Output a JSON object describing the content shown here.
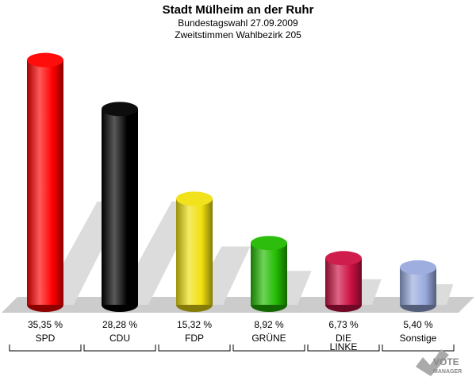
{
  "header": {
    "title": "Stadt Mülheim an der Ruhr",
    "subtitle1": "Bundestagswahl 27.09.2009",
    "subtitle2": "Zweitstimmen Wahlbezirk 205"
  },
  "logo": {
    "line1": "VOTE",
    "line2": "MANAGER"
  },
  "chart_data": {
    "type": "bar",
    "title": "Stadt Mülheim an der Ruhr",
    "subtitle": [
      "Bundestagswahl 27.09.2009",
      "Zweitstimmen Wahlbezirk 205"
    ],
    "categories": [
      "SPD",
      "CDU",
      "FDP",
      "GRÜNE",
      "DIE LINKE",
      "Sonstige"
    ],
    "category_lines": [
      [
        "SPD"
      ],
      [
        "CDU"
      ],
      [
        "FDP"
      ],
      [
        "GRÜNE"
      ],
      [
        "DIE",
        "LINKE"
      ],
      [
        "Sonstige"
      ]
    ],
    "values": [
      35.35,
      28.28,
      15.32,
      8.92,
      6.73,
      5.4
    ],
    "value_labels": [
      "35,35 %",
      "28,28 %",
      "15,32 %",
      "8,92 %",
      "6,73 %",
      "5,40 %"
    ],
    "colors": [
      "#ff0000",
      "#000000",
      "#f0e010",
      "#22bb00",
      "#cc1144",
      "#99aadd"
    ],
    "ylim": [
      0,
      36
    ],
    "grid": false,
    "legend": "none"
  }
}
